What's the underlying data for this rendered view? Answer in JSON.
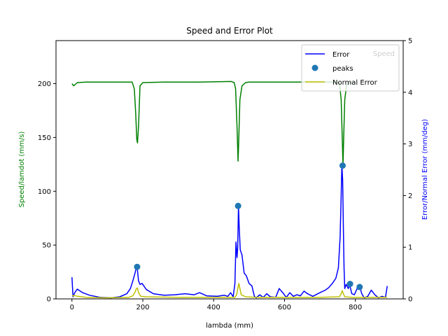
{
  "chart_data": {
    "type": "line",
    "title": "Speed and Error Plot",
    "xlabel": "lambda (mm)",
    "ylabel_left": "Speed/lamdot (mm/s)",
    "ylabel_right": "Error/Normal Error (mm/deg)",
    "xlim": [
      -45,
      935
    ],
    "ylim_left": [
      0,
      240
    ],
    "ylim_right": [
      0,
      5
    ],
    "xticks": [
      0,
      200,
      400,
      600,
      800
    ],
    "yticks_left": [
      0,
      50,
      100,
      150,
      200
    ],
    "yticks_right": [
      0,
      1,
      2,
      3,
      4,
      5
    ],
    "grid": false,
    "legend_placement": "top-right",
    "colors": {
      "speed": "#008000",
      "error": "#0000ff",
      "normal_error": "#bfbf00",
      "peaks": "#1f77b4",
      "left_axis_label": "#008000",
      "right_axis_label": "#0000ff"
    },
    "series": [
      {
        "name": "Speed",
        "axis": "left",
        "x": [
          0,
          5,
          15,
          40,
          100,
          170,
          176,
          180,
          183,
          185,
          188,
          192,
          200,
          260,
          360,
          450,
          458,
          462,
          466,
          469,
          471,
          474,
          480,
          490,
          500,
          560,
          650,
          740,
          755,
          760,
          763,
          765,
          767,
          770,
          775,
          785,
          800
        ],
        "values": [
          200,
          198,
          201,
          201.5,
          201.5,
          201.5,
          195,
          172,
          148,
          145,
          160,
          198,
          201,
          201.5,
          201.5,
          202,
          201,
          195,
          160,
          128,
          150,
          185,
          198,
          201,
          201.5,
          201.5,
          201.5,
          201.5,
          201,
          185,
          150,
          124,
          150,
          185,
          198,
          201,
          201.5
        ]
      },
      {
        "name": "Error",
        "axis": "right",
        "x": [
          0,
          3,
          8,
          15,
          30,
          50,
          80,
          110,
          135,
          155,
          165,
          172,
          178,
          182,
          185,
          188,
          192,
          198,
          210,
          230,
          260,
          290,
          320,
          345,
          360,
          380,
          410,
          430,
          440,
          448,
          455,
          460,
          463,
          466,
          468,
          470,
          472,
          475,
          480,
          486,
          492,
          500,
          508,
          515,
          520,
          530,
          540,
          550,
          560,
          575,
          585,
          595,
          605,
          615,
          625,
          635,
          645,
          655,
          665,
          680,
          700,
          715,
          725,
          735,
          745,
          752,
          757,
          760,
          762,
          764,
          766,
          768,
          770,
          774,
          780,
          784,
          790,
          797,
          805,
          812,
          818,
          825,
          835,
          845,
          855,
          865,
          875,
          885,
          890
        ],
        "values": [
          0.42,
          0.04,
          0.12,
          0.19,
          0.12,
          0.07,
          0.03,
          0.02,
          0.04,
          0.1,
          0.2,
          0.35,
          0.5,
          0.62,
          0.55,
          0.35,
          0.28,
          0.3,
          0.18,
          0.1,
          0.07,
          0.08,
          0.1,
          0.08,
          0.12,
          0.06,
          0.05,
          0.07,
          0.05,
          0.12,
          0.04,
          0.3,
          1.1,
          0.8,
          1.0,
          1.8,
          1.4,
          0.95,
          0.85,
          0.5,
          0.45,
          0.3,
          0.25,
          0.05,
          0.02,
          0.08,
          0.03,
          0.1,
          0.04,
          0.03,
          0.2,
          0.12,
          0.03,
          0.12,
          0.05,
          0.08,
          0.06,
          0.15,
          0.1,
          0.05,
          0.12,
          0.17,
          0.22,
          0.3,
          0.4,
          0.6,
          1.2,
          2.0,
          2.6,
          2.3,
          1.4,
          0.6,
          0.2,
          0.28,
          0.2,
          0.27,
          0.1,
          0.08,
          0.2,
          0.25,
          0.1,
          0.02,
          0.05,
          0.17,
          0.08,
          0.02,
          0.05,
          0.03,
          0.25
        ]
      },
      {
        "name": "Normal Error",
        "axis": "right",
        "x": [
          0,
          5,
          15,
          40,
          100,
          160,
          172,
          178,
          182,
          185,
          188,
          194,
          210,
          300,
          400,
          450,
          460,
          465,
          468,
          471,
          474,
          478,
          490,
          520,
          600,
          700,
          755,
          760,
          763,
          766,
          770,
          790,
          850,
          890
        ],
        "values": [
          0.05,
          0.07,
          0.05,
          0.03,
          0.02,
          0.03,
          0.06,
          0.13,
          0.2,
          0.21,
          0.12,
          0.05,
          0.04,
          0.03,
          0.03,
          0.03,
          0.03,
          0.08,
          0.2,
          0.3,
          0.2,
          0.08,
          0.04,
          0.03,
          0.03,
          0.03,
          0.04,
          0.1,
          0.16,
          0.1,
          0.04,
          0.03,
          0.03,
          0.03
        ]
      },
      {
        "name": "peaks",
        "axis": "right",
        "type": "scatter",
        "x": [
          184,
          469,
          764,
          785,
          812
        ],
        "values": [
          0.62,
          1.8,
          2.58,
          0.29,
          0.23
        ]
      }
    ]
  },
  "legend": {
    "items": [
      {
        "key": "error",
        "label": "Error"
      },
      {
        "key": "peaks",
        "label": "peaks"
      },
      {
        "key": "normal_error",
        "label": "Normal Error"
      }
    ],
    "behind_label": "Speed"
  }
}
